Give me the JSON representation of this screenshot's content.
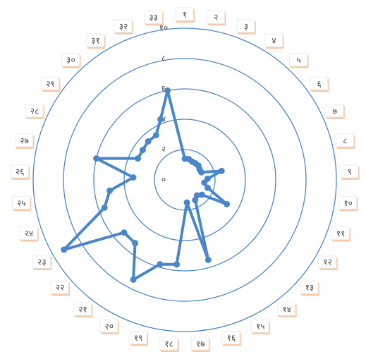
{
  "chart_data": {
    "type": "radar",
    "categories": [
      "१",
      "२",
      "३",
      "४",
      "५",
      "६",
      "७",
      "८",
      "९",
      "१०",
      "११",
      "१२",
      "१३",
      "१४",
      "१५",
      "१६",
      "१७",
      "१८",
      "१९",
      "२०",
      "२१",
      "२२",
      "२३",
      "२४",
      "२५",
      "२६",
      "२७",
      "२८",
      "२९",
      "३०",
      "३१",
      "३२",
      "३३"
    ],
    "values": [
      1.4,
      1.4,
      1.3,
      1.3,
      1.3,
      1.2,
      1.2,
      2.5,
      1.5,
      1.3,
      1.6,
      3.2,
      1.5,
      1.3,
      1.5,
      5.5,
      1.5,
      5.6,
      5.8,
      7.4,
      5.3,
      5.3,
      9.2,
      5.6,
      5.0,
      3.4,
      6.0,
      3.4,
      3.4,
      3.5,
      3.5,
      4.3,
      6.0
    ],
    "color": "#4a86c8",
    "rlim": [
      0,
      10
    ],
    "rticks": [
      {
        "value": 0,
        "label": "०"
      },
      {
        "value": 2,
        "label": "२"
      },
      {
        "value": 4,
        "label": "४"
      },
      {
        "value": 6,
        "label": "६"
      },
      {
        "value": 8,
        "label": "८"
      },
      {
        "value": 10,
        "label": "१०"
      }
    ]
  }
}
